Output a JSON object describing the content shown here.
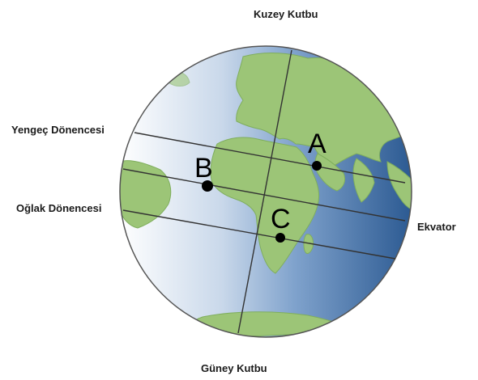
{
  "labels": {
    "north_pole": "Kuzey Kutbu",
    "south_pole": "Güney Kutbu",
    "tropic_cancer": "Yengeç Dönencesi",
    "tropic_capricorn": "Oğlak Dönencesi",
    "equator": "Ekvator"
  },
  "points": [
    {
      "id": "A",
      "label": "A"
    },
    {
      "id": "B",
      "label": "B"
    },
    {
      "id": "C",
      "label": "C"
    }
  ],
  "colors": {
    "ocean_light": "#ffffff",
    "ocean_mid": "#8fb0d6",
    "ocean_dark": "#2f5f98",
    "land": "#9cc577",
    "land_dark": "#7fae5d",
    "line": "#333333",
    "globe_border": "#555555"
  }
}
